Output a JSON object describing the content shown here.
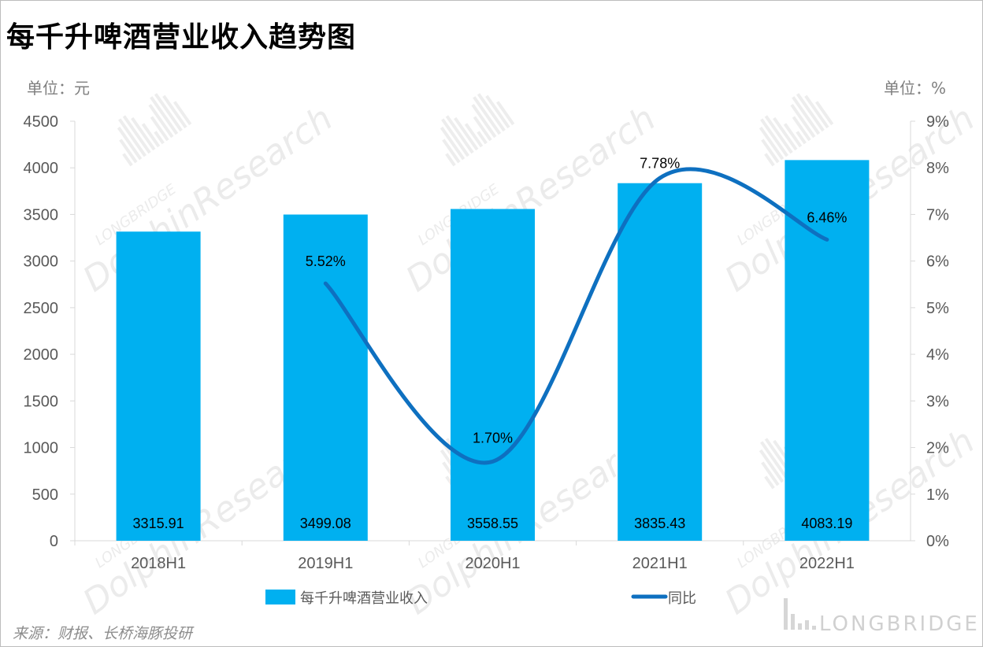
{
  "title": "每千升啤酒营业收入趋势图",
  "unit_left": "单位：元",
  "unit_right": "单位：%",
  "source": "来源：财报、长桥海豚投研",
  "watermark": {
    "small": "LONGBRIDGE",
    "large": "DolphinResearch",
    "brand": "LONGBRIDGE"
  },
  "colors": {
    "bar": "#00b0f0",
    "line": "#0e70c0",
    "axis_text": "#595959",
    "grid_axis": "#d9d9d9"
  },
  "chart_data": {
    "type": "bar",
    "title": "每千升啤酒营业收入趋势图",
    "categories": [
      "2018H1",
      "2019H1",
      "2020H1",
      "2021H1",
      "2022H1"
    ],
    "series": [
      {
        "name": "每千升啤酒营业收入",
        "type": "bar",
        "axis": "left",
        "values": [
          3315.91,
          3499.08,
          3558.55,
          3835.43,
          4083.19
        ],
        "labels": [
          "3315.91",
          "3499.08",
          "3558.55",
          "3835.43",
          "4083.19"
        ]
      },
      {
        "name": "同比",
        "type": "line",
        "smooth": true,
        "axis": "right",
        "values": [
          null,
          5.52,
          1.7,
          7.78,
          6.46
        ],
        "labels": [
          "",
          "5.52%",
          "1.70%",
          "7.78%",
          "6.46%"
        ]
      }
    ],
    "y_left": {
      "min": 0,
      "max": 4500,
      "step": 500,
      "ticks": [
        "0",
        "500",
        "1000",
        "1500",
        "2000",
        "2500",
        "3000",
        "3500",
        "4000",
        "4500"
      ]
    },
    "y_right": {
      "min": 0,
      "max": 9,
      "step": 1,
      "ticks": [
        "0%",
        "1%",
        "2%",
        "3%",
        "4%",
        "5%",
        "6%",
        "7%",
        "8%",
        "9%"
      ]
    },
    "legend": {
      "position": "bottom"
    },
    "grid": false
  }
}
